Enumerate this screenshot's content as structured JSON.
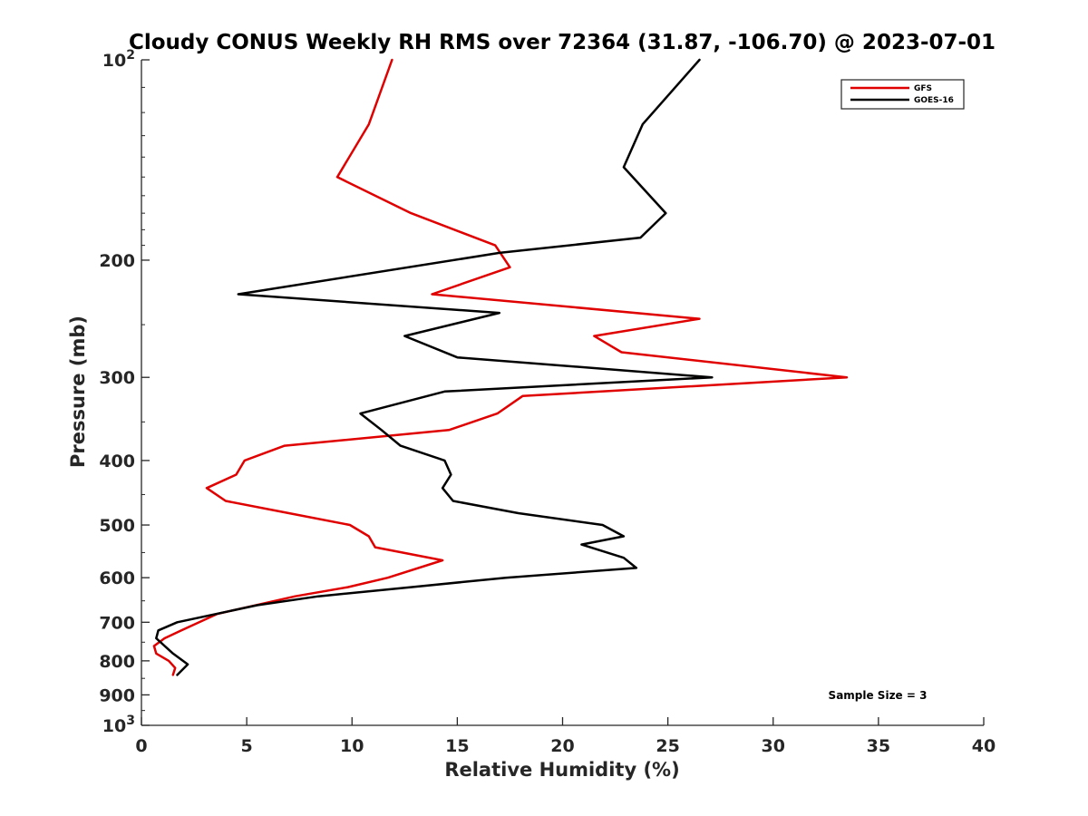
{
  "chart_data": {
    "type": "line",
    "title": "Cloudy CONUS Weekly RH RMS over 72364 (31.87, -106.70) @ 2023-07-01",
    "xlabel": "Relative Humidity (%)",
    "ylabel": "Pressure (mb)",
    "xlim": [
      0,
      40
    ],
    "ylim": [
      100,
      1000
    ],
    "y_scale": "log",
    "y_reversed": true,
    "grid": false,
    "legend_position": "top-right",
    "x_ticks": [
      0,
      5,
      10,
      15,
      20,
      25,
      30,
      35,
      40
    ],
    "y_ticks": [
      {
        "value": 100,
        "base": "10",
        "exp": "2"
      },
      {
        "value": 200,
        "label": "200"
      },
      {
        "value": 300,
        "label": "300"
      },
      {
        "value": 400,
        "label": "400"
      },
      {
        "value": 500,
        "label": "500"
      },
      {
        "value": 600,
        "label": "600"
      },
      {
        "value": 700,
        "label": "700"
      },
      {
        "value": 800,
        "label": "800"
      },
      {
        "value": 900,
        "label": "900"
      },
      {
        "value": 1000,
        "base": "10",
        "exp": "3"
      }
    ],
    "annotation": "Sample Size = 3",
    "series": [
      {
        "name": "GFS",
        "color": "#e00000",
        "points": [
          [
            11.9,
            100
          ],
          [
            10.8,
            125
          ],
          [
            9.3,
            150
          ],
          [
            12.8,
            170
          ],
          [
            16.8,
            190
          ],
          [
            17.5,
            205
          ],
          [
            13.8,
            225
          ],
          [
            26.5,
            245
          ],
          [
            21.5,
            260
          ],
          [
            22.8,
            275
          ],
          [
            33.5,
            300
          ],
          [
            18.1,
            320
          ],
          [
            16.9,
            340
          ],
          [
            14.6,
            360
          ],
          [
            6.8,
            380
          ],
          [
            4.9,
            400
          ],
          [
            4.5,
            420
          ],
          [
            3.1,
            440
          ],
          [
            4.0,
            460
          ],
          [
            7.0,
            480
          ],
          [
            9.9,
            500
          ],
          [
            10.8,
            520
          ],
          [
            11.1,
            540
          ],
          [
            14.3,
            565
          ],
          [
            11.7,
            600
          ],
          [
            9.8,
            620
          ],
          [
            7.3,
            640
          ],
          [
            3.6,
            680
          ],
          [
            1.9,
            720
          ],
          [
            1.1,
            740
          ],
          [
            0.6,
            760
          ],
          [
            0.7,
            780
          ],
          [
            1.3,
            800
          ],
          [
            1.6,
            820
          ],
          [
            1.5,
            840
          ]
        ]
      },
      {
        "name": "GOES-16",
        "color": "#000000",
        "points": [
          [
            26.5,
            100
          ],
          [
            23.8,
            125
          ],
          [
            22.9,
            145
          ],
          [
            24.9,
            170
          ],
          [
            23.7,
            185
          ],
          [
            17.0,
            195
          ],
          [
            4.6,
            225
          ],
          [
            17.0,
            240
          ],
          [
            12.5,
            260
          ],
          [
            15.0,
            280
          ],
          [
            27.1,
            300
          ],
          [
            14.4,
            315
          ],
          [
            10.4,
            340
          ],
          [
            11.4,
            360
          ],
          [
            12.3,
            380
          ],
          [
            14.4,
            400
          ],
          [
            14.7,
            420
          ],
          [
            14.3,
            440
          ],
          [
            14.8,
            460
          ],
          [
            17.9,
            480
          ],
          [
            21.9,
            500
          ],
          [
            22.9,
            520
          ],
          [
            20.9,
            535
          ],
          [
            22.9,
            560
          ],
          [
            23.5,
            580
          ],
          [
            17.3,
            600
          ],
          [
            12.8,
            620
          ],
          [
            8.4,
            640
          ],
          [
            5.5,
            660
          ],
          [
            1.7,
            700
          ],
          [
            0.8,
            720
          ],
          [
            0.7,
            740
          ],
          [
            1.5,
            780
          ],
          [
            2.2,
            810
          ],
          [
            1.7,
            840
          ]
        ]
      }
    ]
  }
}
